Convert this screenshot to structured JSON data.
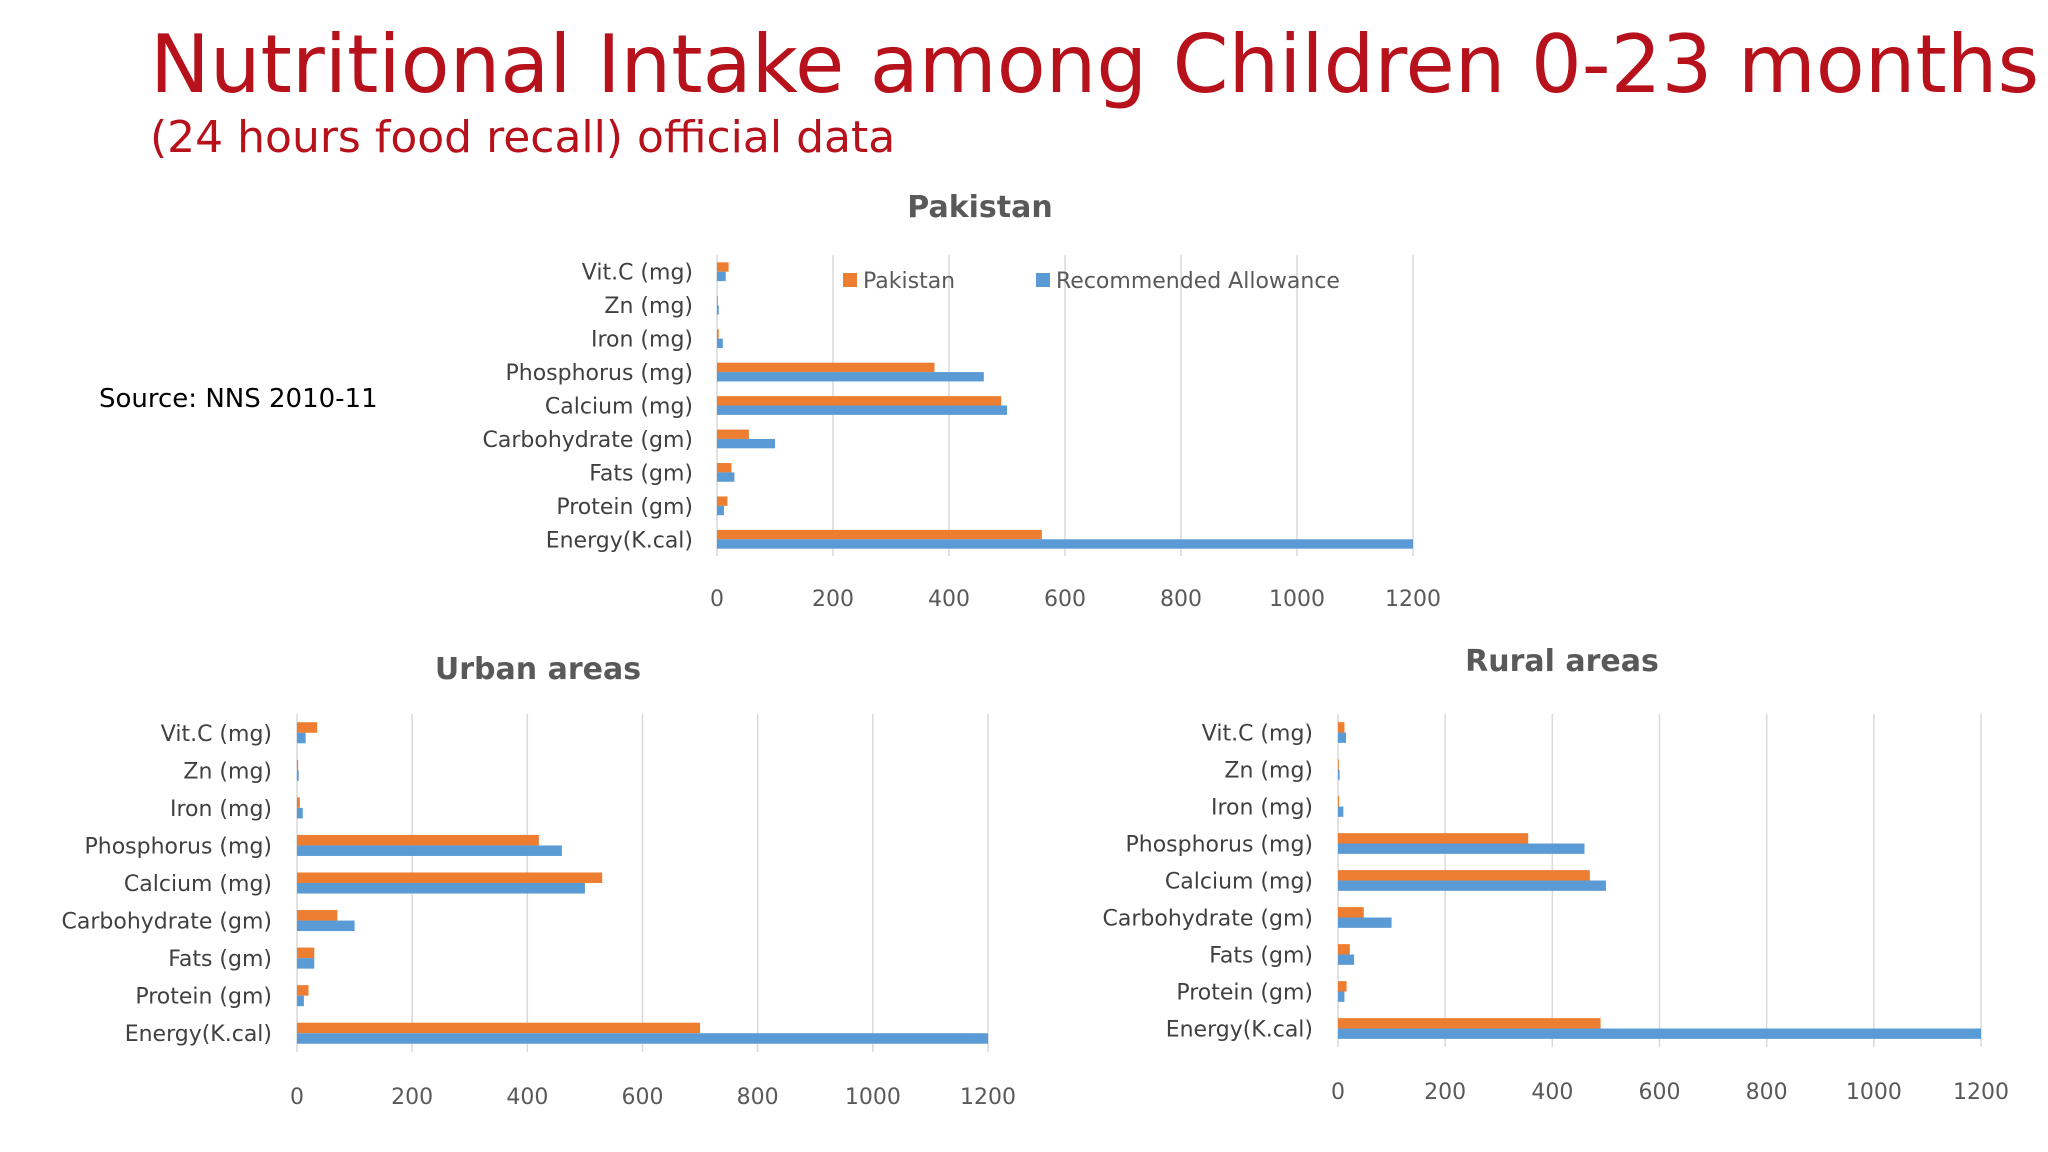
{
  "slide": {
    "title": "Nutritional Intake among Children 0-23 months",
    "subtitle": "(24 hours food recall) official data",
    "source": "Source: NNS 2010-11"
  },
  "colors": {
    "series_a": "#ED7D31",
    "series_b": "#5B9BD5",
    "grid": "#D9D9D9",
    "title": "#B7111B"
  },
  "chart_data": [
    {
      "type": "bar",
      "orientation": "horizontal",
      "title": "Pakistan",
      "categories": [
        "Vit.C (mg)",
        "Zn (mg)",
        "Iron (mg)",
        "Phosphorus (mg)",
        "Calcium (mg)",
        "Carbohydrate (gm)",
        "Fats (gm)",
        "Protein (gm)",
        "Energy(K.cal)"
      ],
      "series": [
        {
          "name": "Pakistan",
          "values": [
            20,
            1,
            3,
            375,
            490,
            55,
            25,
            18,
            560
          ]
        },
        {
          "name": "Recommended Allowance",
          "values": [
            15,
            3,
            10,
            460,
            500,
            100,
            30,
            12,
            1200
          ]
        }
      ],
      "xlim": [
        0,
        1200
      ],
      "xticks": [
        0,
        200,
        400,
        600,
        800,
        1000,
        1200
      ],
      "grid": true,
      "legend": "top"
    },
    {
      "type": "bar",
      "orientation": "horizontal",
      "title": "Urban areas",
      "categories": [
        "Vit.C (mg)",
        "Zn (mg)",
        "Iron (mg)",
        "Phosphorus (mg)",
        "Calcium (mg)",
        "Carbohydrate (gm)",
        "Fats (gm)",
        "Protein (gm)",
        "Energy(K.cal)"
      ],
      "series": [
        {
          "values": [
            35,
            2,
            5,
            420,
            530,
            70,
            30,
            20,
            700
          ]
        },
        {
          "values": [
            15,
            3,
            10,
            460,
            500,
            100,
            30,
            12,
            1200
          ]
        }
      ],
      "xlim": [
        0,
        1200
      ],
      "xticks": [
        0,
        200,
        400,
        600,
        800,
        1000,
        1200
      ],
      "grid": true
    },
    {
      "type": "bar",
      "orientation": "horizontal",
      "title": "Rural areas",
      "categories": [
        "Vit.C (mg)",
        "Zn (mg)",
        "Iron (mg)",
        "Phosphorus (mg)",
        "Calcium (mg)",
        "Carbohydrate (gm)",
        "Fats (gm)",
        "Protein (gm)",
        "Energy(K.cal)"
      ],
      "series": [
        {
          "values": [
            12,
            1,
            2,
            355,
            470,
            48,
            22,
            16,
            490
          ]
        },
        {
          "values": [
            15,
            3,
            10,
            460,
            500,
            100,
            30,
            12,
            1200
          ]
        }
      ],
      "xlim": [
        0,
        1200
      ],
      "xticks": [
        0,
        200,
        400,
        600,
        800,
        1000,
        1200
      ],
      "grid": true
    }
  ]
}
